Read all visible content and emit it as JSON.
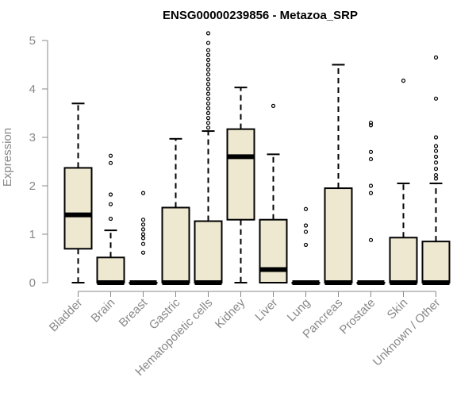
{
  "chart_data": {
    "type": "boxplot",
    "title": "ENSG00000239856 - Metazoa_SRP",
    "xlabel": "",
    "ylabel": "Expression",
    "ylim": [
      0,
      5.2
    ],
    "yticks": [
      0,
      1,
      2,
      3,
      4,
      5
    ],
    "categories": [
      "Bladder",
      "Brain",
      "Breast",
      "Gastric",
      "Hematopoietic cells",
      "Kidney",
      "Liver",
      "Lung",
      "Pancreas",
      "Prostate",
      "Skin",
      "Unknown / Other"
    ],
    "boxes": [
      {
        "name": "Bladder",
        "min": 0,
        "q1": 0.7,
        "median": 1.4,
        "q3": 2.37,
        "max": 3.7,
        "outliers": []
      },
      {
        "name": "Brain",
        "min": 0,
        "q1": 0,
        "median": 0,
        "q3": 0.52,
        "max": 1.08,
        "outliers": [
          1.32,
          1.62,
          1.82,
          2.47,
          2.62
        ]
      },
      {
        "name": "Breast",
        "min": 0,
        "q1": 0,
        "median": 0,
        "q3": 0,
        "max": 0,
        "outliers": [
          0.62,
          0.8,
          0.92,
          1.0,
          1.1,
          1.2,
          1.3,
          1.85
        ]
      },
      {
        "name": "Gastric",
        "min": 0,
        "q1": 0,
        "median": 0,
        "q3": 1.55,
        "max": 2.97,
        "outliers": []
      },
      {
        "name": "Hematopoietic cells",
        "min": 0,
        "q1": 0,
        "median": 0,
        "q3": 1.27,
        "max": 3.13,
        "outliers": [
          3.2,
          3.3,
          3.4,
          3.5,
          3.6,
          3.7,
          3.8,
          3.9,
          4.0,
          4.1,
          4.2,
          4.3,
          4.4,
          4.5,
          4.6,
          4.7,
          4.8,
          4.95,
          5.15
        ]
      },
      {
        "name": "Kidney",
        "min": 0,
        "q1": 1.3,
        "median": 2.6,
        "q3": 3.17,
        "max": 4.03,
        "outliers": []
      },
      {
        "name": "Liver",
        "min": 0,
        "q1": 0,
        "median": 0.27,
        "q3": 1.3,
        "max": 2.65,
        "outliers": [
          3.65
        ]
      },
      {
        "name": "Lung",
        "min": 0,
        "q1": 0,
        "median": 0,
        "q3": 0,
        "max": 0,
        "outliers": [
          0.78,
          1.05,
          1.18,
          1.52
        ]
      },
      {
        "name": "Pancreas",
        "min": 0,
        "q1": 0,
        "median": 0,
        "q3": 1.95,
        "max": 4.5,
        "outliers": []
      },
      {
        "name": "Prostate",
        "min": 0,
        "q1": 0,
        "median": 0,
        "q3": 0,
        "max": 0,
        "outliers": [
          0.88,
          1.85,
          2.0,
          2.55,
          2.7,
          3.25,
          3.3
        ]
      },
      {
        "name": "Skin",
        "min": 0,
        "q1": 0,
        "median": 0,
        "q3": 0.93,
        "max": 2.05,
        "outliers": [
          4.17
        ]
      },
      {
        "name": "Unknown / Other",
        "min": 0,
        "q1": 0,
        "median": 0,
        "q3": 0.85,
        "max": 2.05,
        "outliers": [
          2.15,
          2.22,
          2.35,
          2.48,
          2.6,
          2.72,
          2.82,
          3.0,
          3.8,
          4.65
        ]
      }
    ],
    "box_fill": "#efe8d0",
    "box_stroke": "#000000",
    "axis_color": "#888888"
  }
}
